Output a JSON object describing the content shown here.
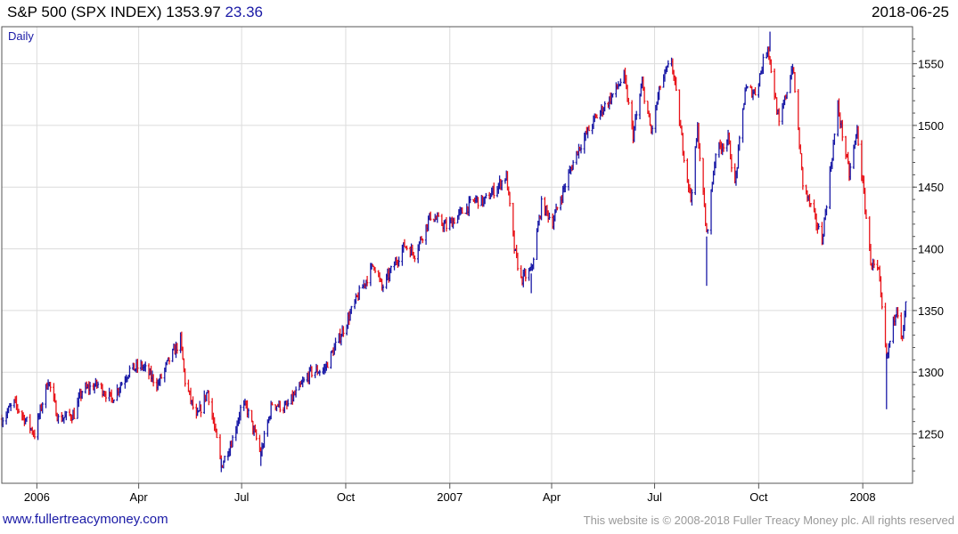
{
  "header": {
    "title": "S&P 500 (SPX INDEX)",
    "price": "1353.97",
    "change": "23.36",
    "date": "2018-06-25"
  },
  "footer": {
    "site": "www.fullertreacymoney.com",
    "copyright": "This website is © 2008-2018 Fuller Treacy Money plc. All rights reserved"
  },
  "colors": {
    "up": "#1a1aa6",
    "down": "#e8141a",
    "grid": "#dcdcdc",
    "frame": "#555555"
  },
  "chart_data": {
    "type": "ohlc",
    "period_label": "Daily",
    "y_ticks": [
      1250,
      1300,
      1350,
      1400,
      1450,
      1500,
      1550
    ],
    "ylim": [
      1210,
      1580
    ],
    "x_tick_labels": [
      "2006",
      "Apr",
      "Jul",
      "Oct",
      "2007",
      "Apr",
      "Jul",
      "Oct",
      "2008"
    ],
    "x_tick_dates": [
      "2006-01-01",
      "2006-04-01",
      "2006-07-01",
      "2006-10-01",
      "2007-01-01",
      "2007-04-01",
      "2007-07-01",
      "2007-10-01",
      "2008-01-01"
    ],
    "xlim": [
      "2005-12-01",
      "2008-02-14"
    ],
    "grid": true,
    "series_path": [
      [
        "2005-12-01",
        1262
      ],
      [
        "2005-12-12",
        1275
      ],
      [
        "2005-12-30",
        1250
      ],
      [
        "2006-01-11",
        1294
      ],
      [
        "2006-01-20",
        1262
      ],
      [
        "2006-02-03",
        1266
      ],
      [
        "2006-02-10",
        1285
      ],
      [
        "2006-02-24",
        1290
      ],
      [
        "2006-03-08",
        1278
      ],
      [
        "2006-03-24",
        1302
      ],
      [
        "2006-04-04",
        1305
      ],
      [
        "2006-04-18",
        1290
      ],
      [
        "2006-04-28",
        1310
      ],
      [
        "2006-05-08",
        1326
      ],
      [
        "2006-05-12",
        1293
      ],
      [
        "2006-05-22",
        1262
      ],
      [
        "2006-06-01",
        1285
      ],
      [
        "2006-06-13",
        1224
      ],
      [
        "2006-06-23",
        1246
      ],
      [
        "2006-06-30",
        1270
      ],
      [
        "2006-07-05",
        1272
      ],
      [
        "2006-07-18",
        1234
      ],
      [
        "2006-07-28",
        1275
      ],
      [
        "2006-08-09",
        1271
      ],
      [
        "2006-08-31",
        1300
      ],
      [
        "2006-09-12",
        1302
      ],
      [
        "2006-09-29",
        1335
      ],
      [
        "2006-10-12",
        1362
      ],
      [
        "2006-10-26",
        1388
      ],
      [
        "2006-11-02",
        1368
      ],
      [
        "2006-11-22",
        1403
      ],
      [
        "2006-12-01",
        1396
      ],
      [
        "2006-12-15",
        1427
      ],
      [
        "2006-12-29",
        1418
      ],
      [
        "2007-01-12",
        1430
      ],
      [
        "2007-01-24",
        1440
      ],
      [
        "2007-01-31",
        1438
      ],
      [
        "2007-02-20",
        1459
      ],
      [
        "2007-02-27",
        1400
      ],
      [
        "2007-03-05",
        1375
      ],
      [
        "2007-03-14",
        1382
      ],
      [
        "2007-03-23",
        1436
      ],
      [
        "2007-04-02",
        1422
      ],
      [
        "2007-04-13",
        1452
      ],
      [
        "2007-04-24",
        1480
      ],
      [
        "2007-05-09",
        1505
      ],
      [
        "2007-05-23",
        1522
      ],
      [
        "2007-06-04",
        1540
      ],
      [
        "2007-06-12",
        1492
      ],
      [
        "2007-06-20",
        1534
      ],
      [
        "2007-06-28",
        1494
      ],
      [
        "2007-07-06",
        1532
      ],
      [
        "2007-07-16",
        1553
      ],
      [
        "2007-07-26",
        1482
      ],
      [
        "2007-08-02",
        1440
      ],
      [
        "2007-08-08",
        1497
      ],
      [
        "2007-08-16",
        1411
      ],
      [
        "2007-08-24",
        1479
      ],
      [
        "2007-09-04",
        1489
      ],
      [
        "2007-09-10",
        1451
      ],
      [
        "2007-09-19",
        1529
      ],
      [
        "2007-09-28",
        1527
      ],
      [
        "2007-10-09",
        1565
      ],
      [
        "2007-10-19",
        1500
      ],
      [
        "2007-10-31",
        1549
      ],
      [
        "2007-11-09",
        1453
      ],
      [
        "2007-11-26",
        1407
      ],
      [
        "2007-12-10",
        1515
      ],
      [
        "2007-12-20",
        1460
      ],
      [
        "2007-12-27",
        1496
      ],
      [
        "2008-01-08",
        1390
      ],
      [
        "2008-01-15",
        1380
      ],
      [
        "2008-01-22",
        1310
      ],
      [
        "2008-01-31",
        1355
      ],
      [
        "2008-02-05",
        1326
      ],
      [
        "2008-02-08",
        1354
      ]
    ],
    "spikes": [
      [
        "2007-08-16",
        1370,
        1410
      ],
      [
        "2008-01-22",
        1270,
        1315
      ],
      [
        "2007-03-14",
        1364,
        1380
      ],
      [
        "2006-06-13",
        1219,
        1230
      ],
      [
        "2006-07-18",
        1224,
        1236
      ],
      [
        "2007-10-11",
        1560,
        1576
      ]
    ]
  }
}
